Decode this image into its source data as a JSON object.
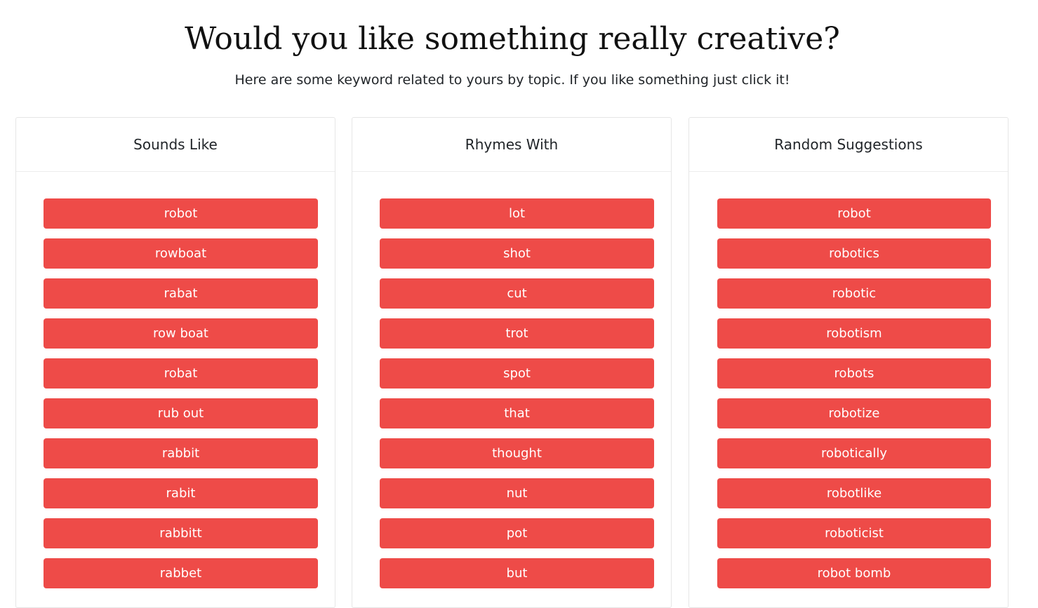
{
  "header": {
    "title": "Would you like something really creative?",
    "subtitle": "Here are some keyword related to yours by topic. If you like something just click it!"
  },
  "colors": {
    "button_bg": "#ee4b48",
    "button_text": "#ffffff",
    "card_border": "#e6e6e6"
  },
  "columns": [
    {
      "title": "Sounds Like",
      "words": [
        "robot",
        "rowboat",
        "rabat",
        "row boat",
        "robat",
        "rub out",
        "rabbit",
        "rabit",
        "rabbitt",
        "rabbet"
      ]
    },
    {
      "title": "Rhymes With",
      "words": [
        "lot",
        "shot",
        "cut",
        "trot",
        "spot",
        "that",
        "thought",
        "nut",
        "pot",
        "but"
      ]
    },
    {
      "title": "Random Suggestions",
      "words": [
        "robot",
        "robotics",
        "robotic",
        "robotism",
        "robots",
        "robotize",
        "robotically",
        "robotlike",
        "roboticist",
        "robot bomb"
      ]
    }
  ]
}
